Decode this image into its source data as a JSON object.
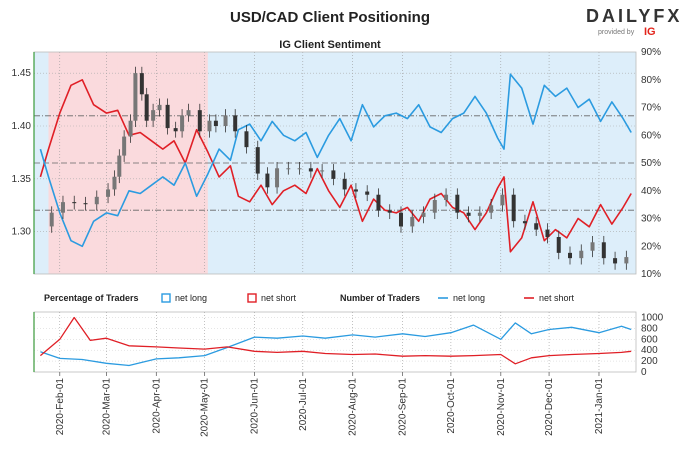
{
  "header": {
    "title": "USD/CAD Client Positioning",
    "brand": "DAILYFX",
    "brand_sub": "provided by",
    "brand_ig": "IG"
  },
  "chart_data": [
    {
      "type": "candlestick+line",
      "title": "IG Client Sentiment",
      "x_ticks": [
        "2020-Feb-01",
        "2020-Mar-01",
        "2020-Apr-01",
        "2020-May-01",
        "2020-Jun-01",
        "2020-Jul-01",
        "2020-Aug-01",
        "2020-Sep-01",
        "2020-Oct-01",
        "2020-Nov-01",
        "2020-Dec-01",
        "2021-Jan-01"
      ],
      "price_axis": {
        "ticks": [
          1.3,
          1.35,
          1.4,
          1.45
        ],
        "ylim": [
          1.26,
          1.47
        ],
        "labels": [
          "1.30",
          "1.35",
          "1.40",
          "1.45"
        ]
      },
      "percent_axis": {
        "ticks": [
          10,
          20,
          30,
          40,
          50,
          60,
          70,
          80,
          90
        ],
        "ylim": [
          10,
          90
        ],
        "labels": [
          "10%",
          "20%",
          "30%",
          "40%",
          "50%",
          "60%",
          "70%",
          "80%",
          "90%"
        ]
      },
      "colors": {
        "net_long": "#2b9be0",
        "net_short": "#e01f26",
        "candle": "#333333",
        "bg_short": "#fadadd",
        "bg_long": "#ddeefa"
      },
      "price_series": [
        {
          "d": "2020-01-20",
          "v": 1.305
        },
        {
          "d": "2020-01-27",
          "v": 1.318
        },
        {
          "d": "2020-02-03",
          "v": 1.328
        },
        {
          "d": "2020-02-10",
          "v": 1.327
        },
        {
          "d": "2020-02-17",
          "v": 1.326
        },
        {
          "d": "2020-02-24",
          "v": 1.333
        },
        {
          "d": "2020-03-02",
          "v": 1.34
        },
        {
          "d": "2020-03-06",
          "v": 1.352
        },
        {
          "d": "2020-03-09",
          "v": 1.372
        },
        {
          "d": "2020-03-12",
          "v": 1.39
        },
        {
          "d": "2020-03-16",
          "v": 1.405
        },
        {
          "d": "2020-03-19",
          "v": 1.45
        },
        {
          "d": "2020-03-23",
          "v": 1.43
        },
        {
          "d": "2020-03-26",
          "v": 1.405
        },
        {
          "d": "2020-03-30",
          "v": 1.415
        },
        {
          "d": "2020-04-03",
          "v": 1.42
        },
        {
          "d": "2020-04-08",
          "v": 1.398
        },
        {
          "d": "2020-04-13",
          "v": 1.395
        },
        {
          "d": "2020-04-17",
          "v": 1.41
        },
        {
          "d": "2020-04-21",
          "v": 1.415
        },
        {
          "d": "2020-04-28",
          "v": 1.395
        },
        {
          "d": "2020-05-04",
          "v": 1.405
        },
        {
          "d": "2020-05-08",
          "v": 1.4
        },
        {
          "d": "2020-05-14",
          "v": 1.41
        },
        {
          "d": "2020-05-20",
          "v": 1.395
        },
        {
          "d": "2020-05-27",
          "v": 1.38
        },
        {
          "d": "2020-06-03",
          "v": 1.355
        },
        {
          "d": "2020-06-09",
          "v": 1.342
        },
        {
          "d": "2020-06-15",
          "v": 1.36
        },
        {
          "d": "2020-06-22",
          "v": 1.36
        },
        {
          "d": "2020-06-29",
          "v": 1.36
        },
        {
          "d": "2020-07-06",
          "v": 1.357
        },
        {
          "d": "2020-07-13",
          "v": 1.358
        },
        {
          "d": "2020-07-20",
          "v": 1.35
        },
        {
          "d": "2020-07-27",
          "v": 1.34
        },
        {
          "d": "2020-08-03",
          "v": 1.338
        },
        {
          "d": "2020-08-10",
          "v": 1.335
        },
        {
          "d": "2020-08-17",
          "v": 1.32
        },
        {
          "d": "2020-08-24",
          "v": 1.318
        },
        {
          "d": "2020-08-31",
          "v": 1.305
        },
        {
          "d": "2020-09-07",
          "v": 1.314
        },
        {
          "d": "2020-09-14",
          "v": 1.318
        },
        {
          "d": "2020-09-21",
          "v": 1.33
        },
        {
          "d": "2020-09-28",
          "v": 1.335
        },
        {
          "d": "2020-10-05",
          "v": 1.318
        },
        {
          "d": "2020-10-12",
          "v": 1.315
        },
        {
          "d": "2020-10-19",
          "v": 1.318
        },
        {
          "d": "2020-10-26",
          "v": 1.325
        },
        {
          "d": "2020-11-02",
          "v": 1.335
        },
        {
          "d": "2020-11-09",
          "v": 1.31
        },
        {
          "d": "2020-11-16",
          "v": 1.308
        },
        {
          "d": "2020-11-23",
          "v": 1.302
        },
        {
          "d": "2020-11-30",
          "v": 1.295
        },
        {
          "d": "2020-12-07",
          "v": 1.28
        },
        {
          "d": "2020-12-14",
          "v": 1.275
        },
        {
          "d": "2020-12-21",
          "v": 1.282
        },
        {
          "d": "2020-12-28",
          "v": 1.29
        },
        {
          "d": "2021-01-04",
          "v": 1.275
        },
        {
          "d": "2021-01-11",
          "v": 1.27
        },
        {
          "d": "2021-01-18",
          "v": 1.276
        }
      ],
      "net_long_percent": [
        {
          "d": "2020-01-20",
          "v": 55
        },
        {
          "d": "2020-01-25",
          "v": 45
        },
        {
          "d": "2020-02-01",
          "v": 32
        },
        {
          "d": "2020-02-08",
          "v": 22
        },
        {
          "d": "2020-02-15",
          "v": 20
        },
        {
          "d": "2020-02-22",
          "v": 29
        },
        {
          "d": "2020-03-01",
          "v": 32
        },
        {
          "d": "2020-03-08",
          "v": 31
        },
        {
          "d": "2020-03-15",
          "v": 40
        },
        {
          "d": "2020-03-22",
          "v": 39
        },
        {
          "d": "2020-03-29",
          "v": 42
        },
        {
          "d": "2020-04-05",
          "v": 45
        },
        {
          "d": "2020-04-12",
          "v": 42
        },
        {
          "d": "2020-04-19",
          "v": 50
        },
        {
          "d": "2020-04-26",
          "v": 38
        },
        {
          "d": "2020-05-03",
          "v": 46
        },
        {
          "d": "2020-05-10",
          "v": 55
        },
        {
          "d": "2020-05-17",
          "v": 51
        },
        {
          "d": "2020-05-22",
          "v": 62
        },
        {
          "d": "2020-05-29",
          "v": 64
        },
        {
          "d": "2020-06-05",
          "v": 58
        },
        {
          "d": "2020-06-12",
          "v": 65
        },
        {
          "d": "2020-06-19",
          "v": 60
        },
        {
          "d": "2020-06-26",
          "v": 58
        },
        {
          "d": "2020-07-03",
          "v": 61
        },
        {
          "d": "2020-07-10",
          "v": 52
        },
        {
          "d": "2020-07-17",
          "v": 60
        },
        {
          "d": "2020-07-24",
          "v": 66
        },
        {
          "d": "2020-07-31",
          "v": 58
        },
        {
          "d": "2020-08-07",
          "v": 71
        },
        {
          "d": "2020-08-14",
          "v": 63
        },
        {
          "d": "2020-08-21",
          "v": 67
        },
        {
          "d": "2020-08-28",
          "v": 68
        },
        {
          "d": "2020-09-04",
          "v": 66
        },
        {
          "d": "2020-09-11",
          "v": 71
        },
        {
          "d": "2020-09-18",
          "v": 63
        },
        {
          "d": "2020-09-25",
          "v": 61
        },
        {
          "d": "2020-10-02",
          "v": 66
        },
        {
          "d": "2020-10-09",
          "v": 68
        },
        {
          "d": "2020-10-16",
          "v": 74
        },
        {
          "d": "2020-10-23",
          "v": 68
        },
        {
          "d": "2020-10-30",
          "v": 59
        },
        {
          "d": "2020-11-03",
          "v": 55
        },
        {
          "d": "2020-11-07",
          "v": 82
        },
        {
          "d": "2020-11-14",
          "v": 77
        },
        {
          "d": "2020-11-21",
          "v": 64
        },
        {
          "d": "2020-11-28",
          "v": 78
        },
        {
          "d": "2020-12-05",
          "v": 74
        },
        {
          "d": "2020-12-12",
          "v": 77
        },
        {
          "d": "2020-12-19",
          "v": 70
        },
        {
          "d": "2020-12-26",
          "v": 73
        },
        {
          "d": "2021-01-02",
          "v": 65
        },
        {
          "d": "2021-01-09",
          "v": 72
        },
        {
          "d": "2021-01-16",
          "v": 66
        },
        {
          "d": "2021-01-21",
          "v": 61
        }
      ],
      "net_short_percent": [
        {
          "d": "2020-01-20",
          "v": 45
        },
        {
          "d": "2020-01-25",
          "v": 55
        },
        {
          "d": "2020-02-01",
          "v": 68
        },
        {
          "d": "2020-02-08",
          "v": 78
        },
        {
          "d": "2020-02-15",
          "v": 80
        },
        {
          "d": "2020-02-22",
          "v": 71
        },
        {
          "d": "2020-03-01",
          "v": 68
        },
        {
          "d": "2020-03-08",
          "v": 69
        },
        {
          "d": "2020-03-15",
          "v": 60
        },
        {
          "d": "2020-03-22",
          "v": 61
        },
        {
          "d": "2020-03-29",
          "v": 58
        },
        {
          "d": "2020-04-05",
          "v": 55
        },
        {
          "d": "2020-04-12",
          "v": 58
        },
        {
          "d": "2020-04-19",
          "v": 50
        },
        {
          "d": "2020-04-26",
          "v": 62
        },
        {
          "d": "2020-05-03",
          "v": 54
        },
        {
          "d": "2020-05-10",
          "v": 45
        },
        {
          "d": "2020-05-17",
          "v": 49
        },
        {
          "d": "2020-05-22",
          "v": 38
        },
        {
          "d": "2020-05-29",
          "v": 36
        },
        {
          "d": "2020-06-05",
          "v": 42
        },
        {
          "d": "2020-06-12",
          "v": 35
        },
        {
          "d": "2020-06-19",
          "v": 40
        },
        {
          "d": "2020-06-26",
          "v": 42
        },
        {
          "d": "2020-07-03",
          "v": 39
        },
        {
          "d": "2020-07-10",
          "v": 48
        },
        {
          "d": "2020-07-17",
          "v": 40
        },
        {
          "d": "2020-07-24",
          "v": 34
        },
        {
          "d": "2020-07-31",
          "v": 42
        },
        {
          "d": "2020-08-07",
          "v": 29
        },
        {
          "d": "2020-08-14",
          "v": 37
        },
        {
          "d": "2020-08-21",
          "v": 33
        },
        {
          "d": "2020-08-28",
          "v": 32
        },
        {
          "d": "2020-09-04",
          "v": 34
        },
        {
          "d": "2020-09-11",
          "v": 29
        },
        {
          "d": "2020-09-18",
          "v": 37
        },
        {
          "d": "2020-09-25",
          "v": 39
        },
        {
          "d": "2020-10-02",
          "v": 34
        },
        {
          "d": "2020-10-09",
          "v": 32
        },
        {
          "d": "2020-10-16",
          "v": 26
        },
        {
          "d": "2020-10-23",
          "v": 32
        },
        {
          "d": "2020-10-30",
          "v": 41
        },
        {
          "d": "2020-11-03",
          "v": 45
        },
        {
          "d": "2020-11-07",
          "v": 18
        },
        {
          "d": "2020-11-14",
          "v": 23
        },
        {
          "d": "2020-11-21",
          "v": 36
        },
        {
          "d": "2020-11-28",
          "v": 22
        },
        {
          "d": "2020-12-05",
          "v": 26
        },
        {
          "d": "2020-12-12",
          "v": 23
        },
        {
          "d": "2020-12-19",
          "v": 30
        },
        {
          "d": "2020-12-26",
          "v": 27
        },
        {
          "d": "2021-01-02",
          "v": 35
        },
        {
          "d": "2021-01-09",
          "v": 28
        },
        {
          "d": "2021-01-16",
          "v": 34
        },
        {
          "d": "2021-01-21",
          "v": 39
        }
      ],
      "reference_lines_percent": [
        50,
        33,
        67
      ]
    },
    {
      "type": "line",
      "legend_groups": [
        {
          "title": "Percentage of Traders",
          "items": [
            {
              "label": "net long",
              "style": "box",
              "color": "#2b9be0"
            },
            {
              "label": "net short",
              "style": "box",
              "color": "#e01f26"
            }
          ]
        },
        {
          "title": "Number of Traders",
          "items": [
            {
              "label": "net long",
              "style": "line",
              "color": "#2b9be0"
            },
            {
              "label": "net short",
              "style": "line",
              "color": "#e01f26"
            }
          ]
        }
      ],
      "y_axis": {
        "ticks": [
          0,
          200,
          400,
          600,
          800,
          1000
        ],
        "labels": [
          "0",
          "200",
          "400",
          "600",
          "800",
          "1000"
        ],
        "ylim": [
          0,
          1100
        ]
      },
      "net_long_count": [
        {
          "d": "2020-01-20",
          "v": 370
        },
        {
          "d": "2020-02-01",
          "v": 250
        },
        {
          "d": "2020-02-15",
          "v": 230
        },
        {
          "d": "2020-03-01",
          "v": 160
        },
        {
          "d": "2020-03-15",
          "v": 120
        },
        {
          "d": "2020-04-01",
          "v": 240
        },
        {
          "d": "2020-04-15",
          "v": 260
        },
        {
          "d": "2020-05-01",
          "v": 300
        },
        {
          "d": "2020-05-15",
          "v": 450
        },
        {
          "d": "2020-06-01",
          "v": 640
        },
        {
          "d": "2020-06-15",
          "v": 620
        },
        {
          "d": "2020-07-01",
          "v": 660
        },
        {
          "d": "2020-07-15",
          "v": 620
        },
        {
          "d": "2020-08-01",
          "v": 680
        },
        {
          "d": "2020-08-15",
          "v": 640
        },
        {
          "d": "2020-09-01",
          "v": 700
        },
        {
          "d": "2020-09-15",
          "v": 650
        },
        {
          "d": "2020-10-01",
          "v": 720
        },
        {
          "d": "2020-10-15",
          "v": 860
        },
        {
          "d": "2020-11-01",
          "v": 600
        },
        {
          "d": "2020-11-10",
          "v": 900
        },
        {
          "d": "2020-11-20",
          "v": 700
        },
        {
          "d": "2020-12-01",
          "v": 780
        },
        {
          "d": "2020-12-15",
          "v": 820
        },
        {
          "d": "2021-01-01",
          "v": 720
        },
        {
          "d": "2021-01-15",
          "v": 840
        },
        {
          "d": "2021-01-21",
          "v": 780
        }
      ],
      "net_short_count": [
        {
          "d": "2020-01-20",
          "v": 300
        },
        {
          "d": "2020-02-01",
          "v": 600
        },
        {
          "d": "2020-02-10",
          "v": 1000
        },
        {
          "d": "2020-02-20",
          "v": 580
        },
        {
          "d": "2020-03-01",
          "v": 620
        },
        {
          "d": "2020-03-15",
          "v": 480
        },
        {
          "d": "2020-04-01",
          "v": 460
        },
        {
          "d": "2020-04-15",
          "v": 440
        },
        {
          "d": "2020-05-01",
          "v": 420
        },
        {
          "d": "2020-05-15",
          "v": 460
        },
        {
          "d": "2020-06-01",
          "v": 380
        },
        {
          "d": "2020-06-15",
          "v": 360
        },
        {
          "d": "2020-07-01",
          "v": 380
        },
        {
          "d": "2020-07-15",
          "v": 340
        },
        {
          "d": "2020-08-01",
          "v": 320
        },
        {
          "d": "2020-08-15",
          "v": 330
        },
        {
          "d": "2020-09-01",
          "v": 290
        },
        {
          "d": "2020-09-15",
          "v": 300
        },
        {
          "d": "2020-10-01",
          "v": 290
        },
        {
          "d": "2020-10-15",
          "v": 300
        },
        {
          "d": "2020-11-01",
          "v": 320
        },
        {
          "d": "2020-11-10",
          "v": 150
        },
        {
          "d": "2020-11-20",
          "v": 260
        },
        {
          "d": "2020-12-01",
          "v": 300
        },
        {
          "d": "2020-12-15",
          "v": 320
        },
        {
          "d": "2021-01-01",
          "v": 340
        },
        {
          "d": "2021-01-15",
          "v": 360
        },
        {
          "d": "2021-01-21",
          "v": 380
        }
      ]
    }
  ]
}
